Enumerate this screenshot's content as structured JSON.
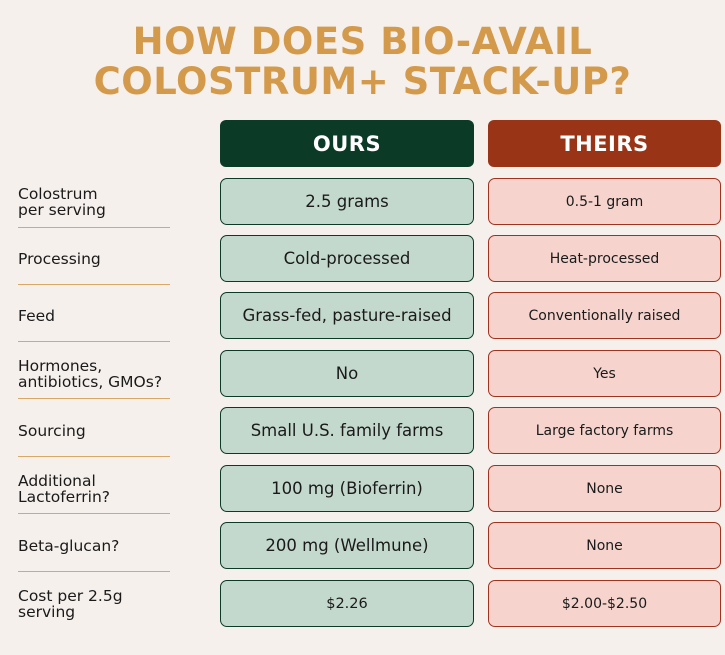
{
  "title": {
    "line1": "HOW DOES BIO-AVAIL",
    "line2": "COLOSTRUM+ STACK-UP?"
  },
  "headers": {
    "ours": "OURS",
    "theirs": "THEIRS"
  },
  "rows": [
    {
      "label_line1": "Colostrum",
      "label_line2": "per serving",
      "ours": "2.5 grams",
      "theirs": "0.5-1 gram"
    },
    {
      "label_line1": "Processing",
      "label_line2": "",
      "ours": "Cold-processed",
      "theirs": "Heat-processed"
    },
    {
      "label_line1": "Feed",
      "label_line2": "",
      "ours": "Grass-fed, pasture-raised",
      "theirs": "Conventionally raised"
    },
    {
      "label_line1": "Hormones,",
      "label_line2": "antibiotics, GMOs?",
      "ours": "No",
      "theirs": "Yes"
    },
    {
      "label_line1": "Sourcing",
      "label_line2": "",
      "ours": "Small U.S. family farms",
      "theirs": "Large factory farms"
    },
    {
      "label_line1": "Additional",
      "label_line2": "Lactoferrin?",
      "ours": "100 mg (Bioferrin)",
      "theirs": "None"
    },
    {
      "label_line1": "Beta-glucan?",
      "label_line2": "",
      "ours": "200 mg (Wellmune)",
      "theirs": "None"
    },
    {
      "label_line1": "Cost per 2.5g",
      "label_line2": "serving",
      "ours": "$2.26",
      "theirs": "$2.00-$2.50"
    }
  ],
  "colors": {
    "background": "#f5f0ec",
    "title": "#d49a4c",
    "ours_header": "#0b3a26",
    "theirs_header": "#9a3417",
    "ours_cell": "#c4d9cd",
    "theirs_cell": "#f6d4cd",
    "divider": "#d9a766"
  }
}
